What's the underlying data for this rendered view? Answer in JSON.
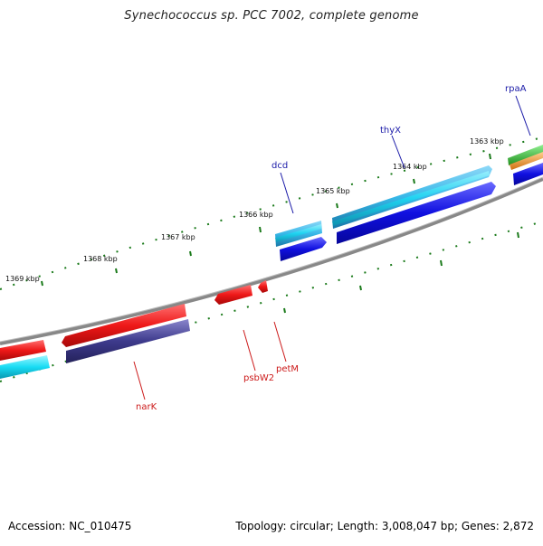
{
  "title": "Synechococcus sp. PCC 7002, complete genome",
  "footer": {
    "accession": "Accession: NC_010475",
    "summary": "Topology: circular; Length: 3,008,047 bp; Genes: 2,872"
  },
  "ticks": [
    {
      "label": "1369 kbp"
    },
    {
      "label": "1368 kbp"
    },
    {
      "label": "1367 kbp"
    },
    {
      "label": "1366 kbp"
    },
    {
      "label": "1365 kbp"
    },
    {
      "label": "1364 kbp"
    },
    {
      "label": "1363 kbp"
    }
  ],
  "genes": [
    {
      "name": "rpaA"
    },
    {
      "name": "thyX"
    },
    {
      "name": "dcd"
    },
    {
      "name": "narK"
    },
    {
      "name": "psbW2"
    },
    {
      "name": "petM"
    }
  ],
  "colors": {
    "backbone": "#7a7a7a",
    "gc_skew": "#1a7a1a",
    "cds_red": "#e8141c",
    "cds_cyan": "#18d8f0",
    "cds_sky": "#38b8e8",
    "cds_blue": "#1010e0",
    "cds_navy": "#3d3a8c",
    "cds_green": "#30b830",
    "cds_orange": "#f09020",
    "label_blue": "#1a1aa8",
    "label_red": "#cc1a1a"
  }
}
